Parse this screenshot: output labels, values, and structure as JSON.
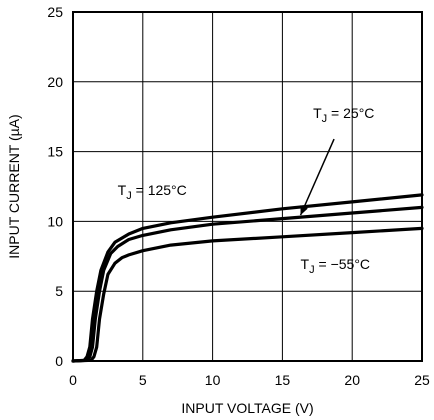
{
  "chart_data": {
    "type": "line",
    "title": "",
    "xlabel": "INPUT VOLTAGE (V)",
    "ylabel": "INPUT CURRENT (µA)",
    "xlim": [
      0,
      25
    ],
    "ylim": [
      0,
      25
    ],
    "xticks": [
      "0",
      "5",
      "10",
      "15",
      "20",
      "25"
    ],
    "yticks": [
      "0",
      "5",
      "10",
      "15",
      "20",
      "25"
    ],
    "grid": true,
    "legend": "none",
    "series": [
      {
        "name": "T_J = 125°C",
        "x": [
          0,
          0.8,
          1.0,
          1.2,
          1.4,
          1.7,
          2.0,
          2.5,
          3.0,
          4.0,
          5.0,
          7.0,
          10.0,
          15.0,
          20.0,
          25.0
        ],
        "y": [
          0.0,
          0.05,
          0.3,
          1.0,
          3.0,
          5.0,
          6.5,
          7.8,
          8.5,
          9.1,
          9.5,
          9.9,
          10.3,
          10.9,
          11.4,
          11.9
        ]
      },
      {
        "name": "T_J = 25°C",
        "x": [
          0,
          1.0,
          1.2,
          1.4,
          1.6,
          1.9,
          2.2,
          2.7,
          3.2,
          4.0,
          5.0,
          7.0,
          10.0,
          15.0,
          20.0,
          25.0
        ],
        "y": [
          0.0,
          0.05,
          0.3,
          1.0,
          3.0,
          5.0,
          6.5,
          7.7,
          8.2,
          8.7,
          9.0,
          9.4,
          9.8,
          10.2,
          10.6,
          11.0
        ]
      },
      {
        "name": "T_J = −55°C",
        "x": [
          0,
          1.3,
          1.5,
          1.7,
          1.9,
          2.2,
          2.5,
          3.0,
          3.5,
          4.0,
          5.0,
          7.0,
          10.0,
          15.0,
          20.0,
          25.0
        ],
        "y": [
          0.0,
          0.05,
          0.3,
          1.0,
          3.0,
          4.8,
          6.2,
          7.0,
          7.4,
          7.6,
          7.9,
          8.3,
          8.6,
          8.9,
          9.2,
          9.5
        ]
      }
    ],
    "annotations": [
      {
        "label_main": "T",
        "label_sub": "J",
        "label_rest": " = 125°C",
        "x": 3.2,
        "y": 11.9
      },
      {
        "label_main": "T",
        "label_sub": "J",
        "label_rest": " = 25°C",
        "x": 17.2,
        "y": 17.4
      },
      {
        "label_main": "T",
        "label_sub": "J",
        "label_rest": " = −55°C",
        "x": 16.3,
        "y": 6.6
      }
    ]
  }
}
